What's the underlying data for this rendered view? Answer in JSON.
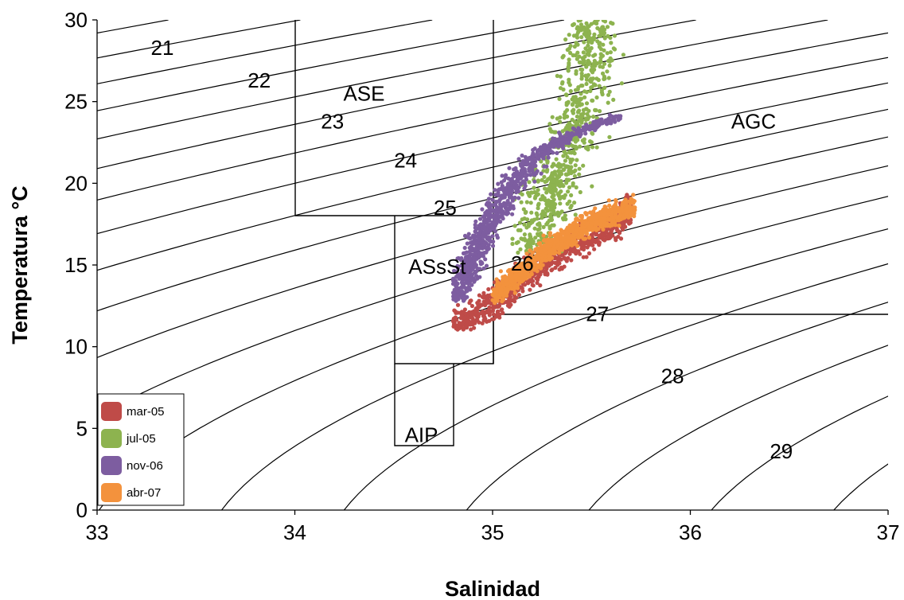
{
  "chart_data": {
    "type": "scatter",
    "xlabel": "Salinidad",
    "ylabel": "Temperatura °C",
    "xlim": [
      33,
      37
    ],
    "ylim": [
      0,
      30
    ],
    "xticks": [
      "33",
      "34",
      "35",
      "36",
      "37"
    ],
    "yticks": [
      "0",
      "5",
      "10",
      "15",
      "20",
      "25",
      "30"
    ],
    "grid": false,
    "legend": "bottom-left",
    "isopycnal_labels": [
      {
        "text": "21",
        "s": 33.33,
        "t": 28.3
      },
      {
        "text": "22",
        "s": 33.82,
        "t": 26.3
      },
      {
        "text": "23",
        "s": 34.19,
        "t": 23.8
      },
      {
        "text": "24",
        "s": 34.56,
        "t": 21.4
      },
      {
        "text": "25",
        "s": 34.76,
        "t": 18.5
      },
      {
        "text": "26",
        "s": 35.15,
        "t": 15.1
      },
      {
        "text": "27",
        "s": 35.53,
        "t": 12.0
      },
      {
        "text": "28",
        "s": 35.91,
        "t": 8.2
      },
      {
        "text": "29",
        "s": 36.46,
        "t": 3.6
      }
    ],
    "water_masses": [
      {
        "label": "ASE",
        "s": 34.35,
        "t": 25.5
      },
      {
        "label": "AGC",
        "s": 36.32,
        "t": 23.8
      },
      {
        "label": "ASsSt",
        "s": 34.72,
        "t": 14.9
      },
      {
        "label": "AIP",
        "s": 34.64,
        "t": 4.6
      }
    ],
    "series": [
      {
        "name": "mar-05",
        "color": "#bf4b48",
        "region": {
          "s_min": 34.8,
          "s_max": 35.7,
          "t_min": 11.0,
          "t_max": 19.5
        },
        "trend": [
          [
            34.83,
            11.3
          ],
          [
            35.0,
            12.6
          ],
          [
            35.2,
            14.6
          ],
          [
            35.4,
            16.3
          ],
          [
            35.6,
            17.5
          ],
          [
            35.7,
            18.3
          ]
        ]
      },
      {
        "name": "jul-05",
        "color": "#8db34f",
        "region": {
          "s_min": 35.1,
          "s_max": 36.05,
          "t_min": 15.7,
          "t_max": 30.0
        },
        "trend": [
          [
            35.2,
            16.5
          ],
          [
            35.3,
            19.5
          ],
          [
            35.4,
            22.5
          ],
          [
            35.45,
            25.0
          ],
          [
            35.5,
            27.5
          ]
        ]
      },
      {
        "name": "nov-06",
        "color": "#7d5da0",
        "region": {
          "s_min": 34.8,
          "s_max": 35.65,
          "t_min": 12.8,
          "t_max": 24.2
        },
        "trend": [
          [
            34.82,
            13.2
          ],
          [
            34.92,
            16.0
          ],
          [
            35.05,
            19.0
          ],
          [
            35.2,
            21.5
          ],
          [
            35.4,
            23.0
          ],
          [
            35.63,
            24.0
          ]
        ]
      },
      {
        "name": "abr-07",
        "color": "#f3923d",
        "region": {
          "s_min": 35.0,
          "s_max": 35.72,
          "t_min": 12.6,
          "t_max": 21.8
        },
        "trend": [
          [
            35.0,
            13.2
          ],
          [
            35.15,
            14.6
          ],
          [
            35.3,
            16.2
          ],
          [
            35.5,
            17.6
          ],
          [
            35.7,
            18.5
          ]
        ]
      }
    ]
  }
}
